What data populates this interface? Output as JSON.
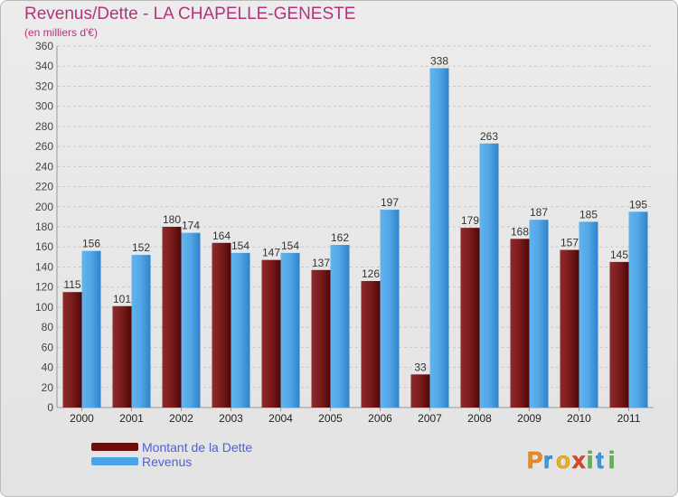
{
  "title": "Revenus/Dette - LA CHAPELLE-GENESTE",
  "subtitle": "(en milliers d'€)",
  "legend": [
    {
      "label": "Montant de la Dette",
      "color": "#6b0e0e"
    },
    {
      "label": "Revenus",
      "color": "#4aa3e6"
    }
  ],
  "logo": {
    "text": "Proxiti"
  },
  "chart_data": {
    "type": "bar",
    "categories": [
      "2000",
      "2001",
      "2002",
      "2003",
      "2004",
      "2005",
      "2006",
      "2007",
      "2008",
      "2009",
      "2010",
      "2011"
    ],
    "series": [
      {
        "name": "Montant de la Dette",
        "color": "#6b0e0e",
        "values": [
          115,
          101,
          180,
          164,
          147,
          137,
          126,
          33,
          179,
          168,
          157,
          145
        ]
      },
      {
        "name": "Revenus",
        "color": "#4aa3e6",
        "values": [
          156,
          152,
          174,
          154,
          154,
          162,
          197,
          338,
          263,
          187,
          185,
          195
        ]
      }
    ],
    "ylim": [
      0,
      360
    ],
    "ytick_step": 20,
    "grid": true,
    "legend_position": "bottom-left"
  }
}
